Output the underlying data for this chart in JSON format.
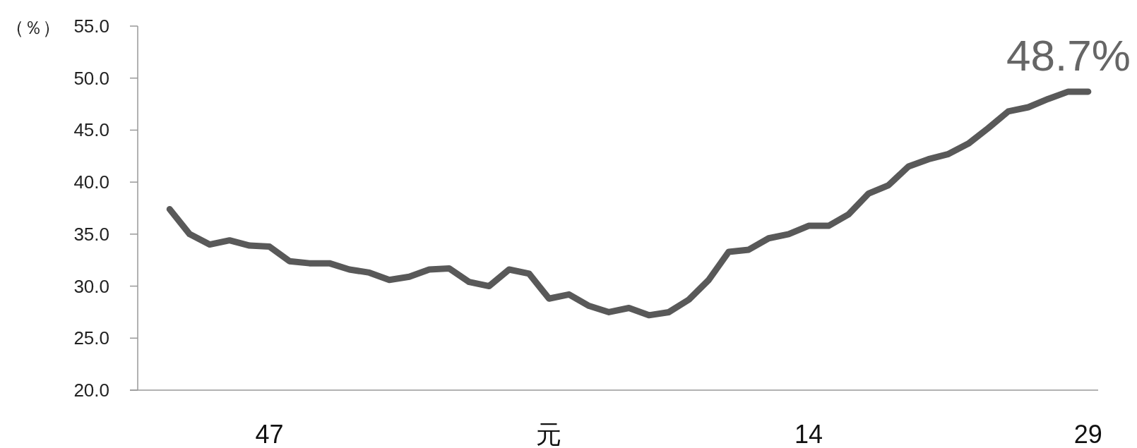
{
  "chart_data": {
    "type": "line",
    "ylabel": "（％）",
    "categories": [
      null,
      null,
      null,
      null,
      null,
      "47",
      null,
      null,
      null,
      null,
      null,
      null,
      null,
      null,
      null,
      null,
      null,
      null,
      null,
      "元",
      null,
      null,
      null,
      null,
      null,
      null,
      null,
      null,
      null,
      null,
      null,
      null,
      "14",
      null,
      null,
      null,
      null,
      null,
      null,
      null,
      null,
      null,
      null,
      null,
      null,
      null,
      "29"
    ],
    "series": [
      {
        "color": "#595959",
        "values": [
          37.4,
          35.0,
          34.0,
          34.4,
          33.9,
          33.8,
          32.4,
          32.2,
          32.2,
          31.6,
          31.3,
          30.6,
          30.9,
          31.6,
          31.7,
          30.4,
          30.0,
          31.6,
          31.2,
          28.8,
          29.2,
          28.1,
          27.5,
          27.9,
          27.2,
          27.5,
          28.7,
          30.6,
          33.3,
          33.5,
          34.6,
          35.0,
          35.8,
          35.8,
          36.9,
          38.9,
          39.7,
          41.5,
          42.2,
          42.7,
          43.7,
          45.2,
          46.8,
          47.2,
          48.0,
          48.7,
          48.7
        ]
      }
    ],
    "ylim": [
      20,
      55
    ],
    "yticks": [
      {
        "value": 20,
        "label": "20.0"
      },
      {
        "value": 25,
        "label": "25.0"
      },
      {
        "value": 30,
        "label": "30.0"
      },
      {
        "value": 35,
        "label": "35.0"
      },
      {
        "value": 40,
        "label": "40.0"
      },
      {
        "value": 45,
        "label": "45.0"
      },
      {
        "value": 50,
        "label": "50.0"
      },
      {
        "value": 55,
        "label": "55.0"
      }
    ],
    "annotations": [
      {
        "text": "48.7%",
        "x": "29",
        "y": 48.7
      }
    ],
    "grid": false,
    "marker": "none",
    "line_style": "solid"
  }
}
